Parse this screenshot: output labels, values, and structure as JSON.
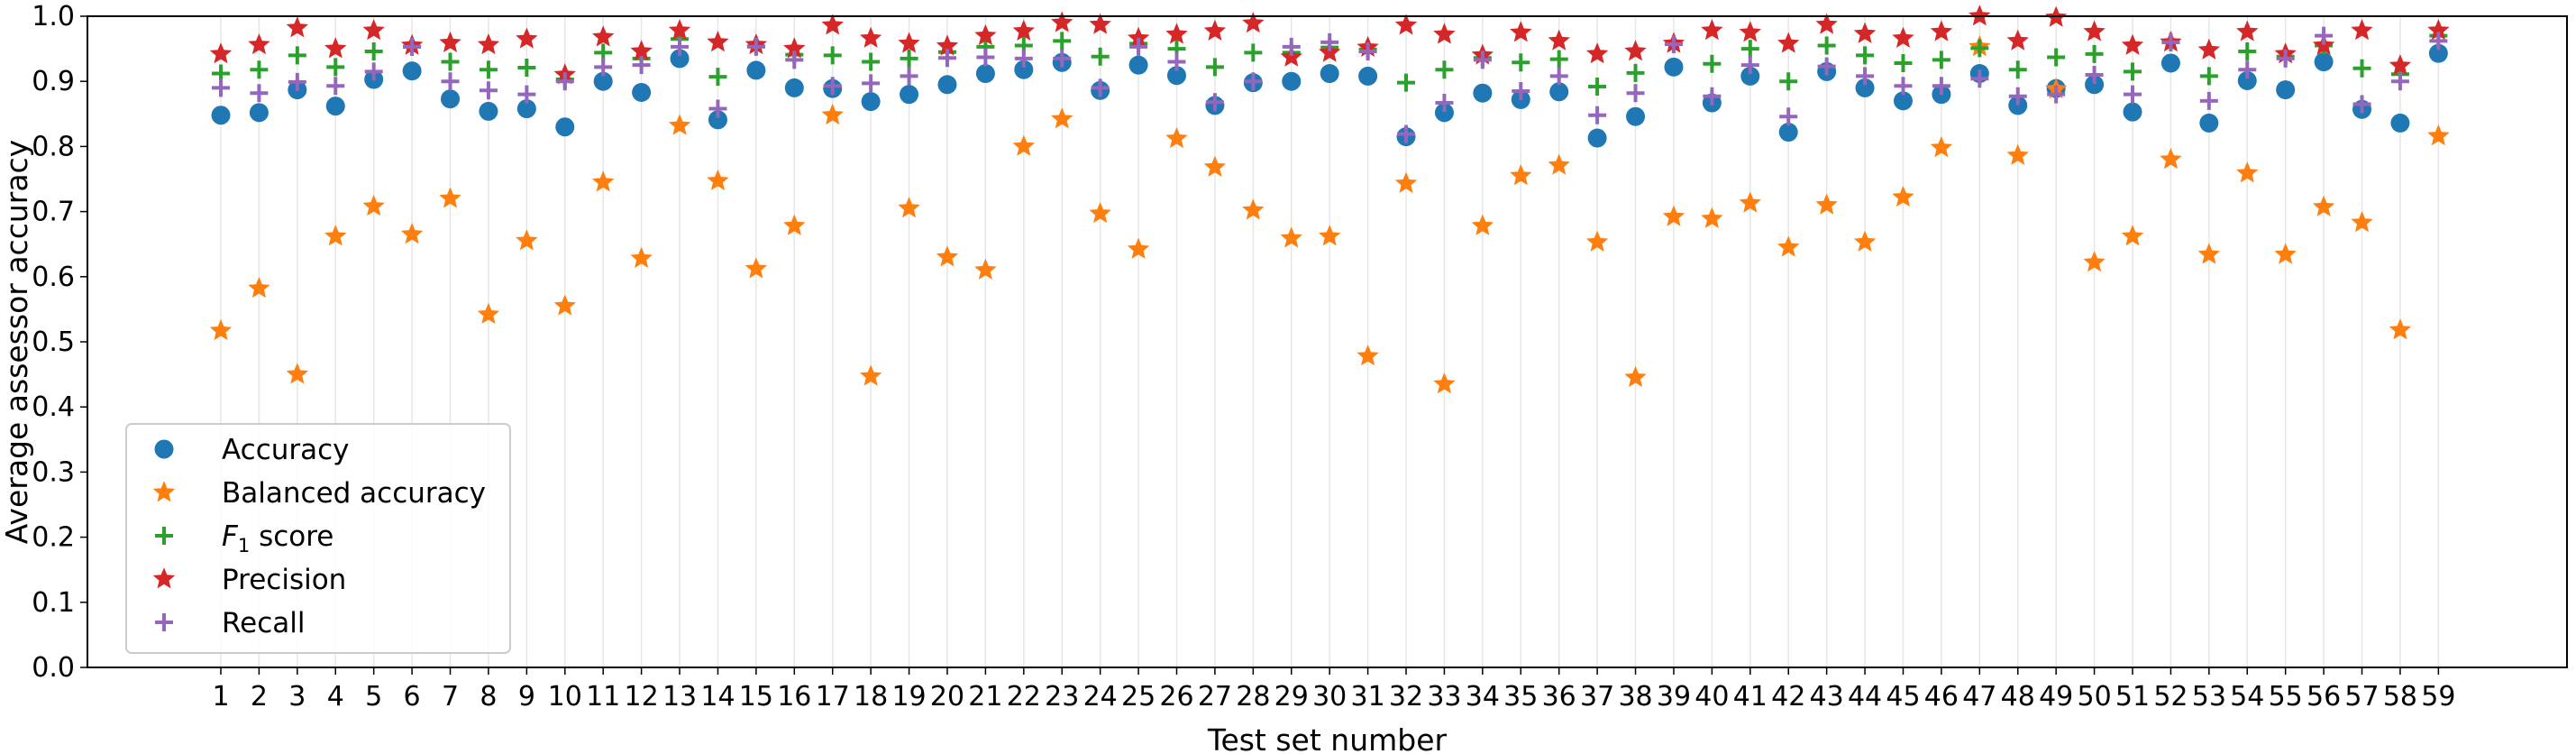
{
  "chart_data": {
    "type": "scatter",
    "title": "",
    "xlabel": "Test set number",
    "ylabel": "Average assessor accuracy",
    "ylim": [
      0,
      1
    ],
    "yticks": [
      0.0,
      0.1,
      0.2,
      0.3,
      0.4,
      0.5,
      0.6,
      0.7,
      0.8,
      0.9,
      1.0
    ],
    "grid": "vertical",
    "legend_position": "lower-left",
    "categories": [
      "1",
      "2",
      "3",
      "4",
      "5",
      "6",
      "7",
      "8",
      "9",
      "10",
      "11",
      "12",
      "13",
      "14",
      "15",
      "16",
      "17",
      "18",
      "19",
      "20",
      "21",
      "22",
      "23",
      "24",
      "25",
      "26",
      "27",
      "28",
      "29",
      "30",
      "31",
      "32",
      "33",
      "34",
      "35",
      "36",
      "37",
      "38",
      "39",
      "40",
      "41",
      "42",
      "43",
      "44",
      "45",
      "46",
      "47",
      "48",
      "49",
      "50",
      "51",
      "52",
      "53",
      "54",
      "55",
      "56",
      "57",
      "58",
      "59"
    ],
    "series": [
      {
        "name": "Accuracy",
        "marker": "circle",
        "color": "#1f77b4",
        "values": [
          0.848,
          0.852,
          0.887,
          0.862,
          0.903,
          0.916,
          0.873,
          0.854,
          0.858,
          0.83,
          0.9,
          0.883,
          0.935,
          0.841,
          0.917,
          0.89,
          0.889,
          0.869,
          0.88,
          0.895,
          0.912,
          0.918,
          0.929,
          0.886,
          0.925,
          0.909,
          0.863,
          0.898,
          0.9,
          0.912,
          0.908,
          0.815,
          0.852,
          0.882,
          0.872,
          0.884,
          0.813,
          0.846,
          0.922,
          0.867,
          0.908,
          0.822,
          0.915,
          0.89,
          0.87,
          0.88,
          0.912,
          0.863,
          0.889,
          0.895,
          0.853,
          0.928,
          0.836,
          0.901,
          0.887,
          0.93,
          0.857,
          0.836,
          0.943
        ]
      },
      {
        "name": "Balanced accuracy",
        "marker": "star",
        "color": "#ff7f0e",
        "values": [
          0.517,
          0.582,
          0.45,
          0.662,
          0.708,
          0.665,
          0.72,
          0.542,
          0.655,
          0.555,
          0.745,
          0.628,
          0.832,
          0.747,
          0.612,
          0.678,
          0.848,
          0.447,
          0.705,
          0.63,
          0.61,
          0.8,
          0.842,
          0.697,
          0.642,
          0.812,
          0.768,
          0.702,
          0.659,
          0.662,
          0.478,
          0.743,
          0.435,
          0.678,
          0.755,
          0.771,
          0.653,
          0.445,
          0.692,
          0.689,
          0.713,
          0.645,
          0.71,
          0.653,
          0.722,
          0.798,
          0.953,
          0.786,
          0.888,
          0.622,
          0.662,
          0.78,
          0.634,
          0.759,
          0.634,
          0.707,
          0.683,
          0.518,
          0.816
        ]
      },
      {
        "name": "F1 score",
        "marker": "plus",
        "color": "#2ca02c",
        "values": [
          0.912,
          0.918,
          0.94,
          0.922,
          0.946,
          0.953,
          0.93,
          0.918,
          0.921,
          0.903,
          0.944,
          0.935,
          0.965,
          0.907,
          0.954,
          0.941,
          0.94,
          0.93,
          0.935,
          0.945,
          0.953,
          0.955,
          0.962,
          0.938,
          0.958,
          0.95,
          0.922,
          0.944,
          0.944,
          0.952,
          0.949,
          0.898,
          0.918,
          0.936,
          0.929,
          0.934,
          0.892,
          0.913,
          0.957,
          0.927,
          0.95,
          0.9,
          0.955,
          0.94,
          0.928,
          0.933,
          0.951,
          0.918,
          0.937,
          0.942,
          0.915,
          0.96,
          0.908,
          0.946,
          0.938,
          0.955,
          0.92,
          0.911,
          0.97
        ]
      },
      {
        "name": "Precision",
        "marker": "star",
        "color": "#d62728",
        "values": [
          0.942,
          0.956,
          0.982,
          0.95,
          0.978,
          0.955,
          0.959,
          0.956,
          0.965,
          0.91,
          0.968,
          0.946,
          0.978,
          0.96,
          0.956,
          0.95,
          0.986,
          0.966,
          0.958,
          0.954,
          0.97,
          0.977,
          0.99,
          0.987,
          0.966,
          0.972,
          0.977,
          0.989,
          0.937,
          0.944,
          0.952,
          0.986,
          0.972,
          0.94,
          0.975,
          0.962,
          0.942,
          0.946,
          0.958,
          0.978,
          0.975,
          0.958,
          0.987,
          0.973,
          0.966,
          0.976,
          1.0,
          0.962,
          0.998,
          0.976,
          0.955,
          0.96,
          0.948,
          0.976,
          0.942,
          0.955,
          0.978,
          0.924,
          0.978
        ]
      },
      {
        "name": "Recall",
        "marker": "plus",
        "color": "#9467bd",
        "values": [
          0.89,
          0.882,
          0.899,
          0.893,
          0.915,
          0.953,
          0.9,
          0.886,
          0.88,
          0.9,
          0.922,
          0.925,
          0.953,
          0.858,
          0.953,
          0.933,
          0.893,
          0.897,
          0.908,
          0.936,
          0.937,
          0.935,
          0.935,
          0.89,
          0.953,
          0.93,
          0.868,
          0.9,
          0.953,
          0.96,
          0.946,
          0.819,
          0.867,
          0.933,
          0.885,
          0.908,
          0.848,
          0.882,
          0.957,
          0.877,
          0.925,
          0.846,
          0.923,
          0.908,
          0.893,
          0.893,
          0.904,
          0.877,
          0.88,
          0.91,
          0.88,
          0.96,
          0.87,
          0.918,
          0.935,
          0.97,
          0.865,
          0.9,
          0.962
        ]
      }
    ]
  }
}
